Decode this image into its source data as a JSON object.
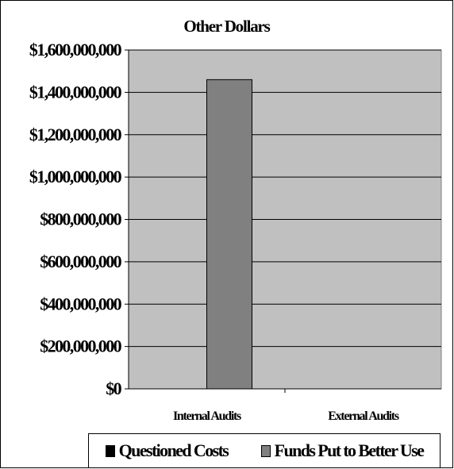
{
  "chart_data": {
    "type": "bar",
    "title": "Other Dollars",
    "categories": [
      "Internal Audits",
      "External Audits"
    ],
    "series": [
      {
        "name": "Questioned Costs",
        "color": "#000000",
        "values": [
          0,
          0
        ]
      },
      {
        "name": "Funds Put to Better Use",
        "color": "#808080",
        "values": [
          1460000000,
          0
        ]
      }
    ],
    "ylim": [
      0,
      1600000000
    ],
    "yticks": [
      0,
      200000000,
      400000000,
      600000000,
      800000000,
      1000000000,
      1200000000,
      1400000000,
      1600000000
    ],
    "ytick_labels": [
      "$0",
      "$200,000,000",
      "$400,000,000",
      "$600,000,000",
      "$800,000,000",
      "$1,000,000,000",
      "$1,200,000,000",
      "$1,400,000,000",
      "$1,600,000,000"
    ],
    "grid": true,
    "plot_background": "#c0c0c0",
    "legend_position": "bottom"
  }
}
